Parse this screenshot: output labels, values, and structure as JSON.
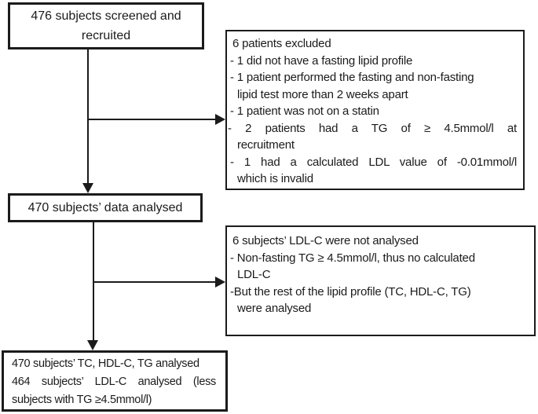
{
  "colors": {
    "ink": "#1b1b1b",
    "background": "#ffffff"
  },
  "flowchart": {
    "screened": {
      "lines": [
        {
          "text": "476 subjects screened and"
        },
        {
          "text": "recruited"
        }
      ]
    },
    "exclusions": {
      "lines": [
        {
          "text": "6 patients excluded"
        },
        {
          "text": "- 1 did not have a fasting lipid profile"
        },
        {
          "text": "- 1 patient performed the fasting and non-fasting"
        },
        {
          "text": "lipid test more than 2 weeks apart",
          "indent": true
        },
        {
          "text": "- 1 patient was not on a statin"
        },
        {
          "text": "- 2 patients had a TG of ≥ 4.5mmol/l at",
          "justify": true,
          "edge": true
        },
        {
          "text": "recruitment",
          "indent": true
        },
        {
          "text": "- 1 had a calculated LDL value of -0.01mmol/l",
          "justify": true
        },
        {
          "text": "which is invalid",
          "indent": true
        }
      ]
    },
    "analysed": {
      "lines": [
        {
          "text": "470 subjects’ data analysed"
        }
      ]
    },
    "ldl_not_analysed": {
      "lines": [
        {
          "text": "6 subjects’ LDL-C were not analysed"
        },
        {
          "text": "- Non-fasting TG ≥ 4.5mmol/l, thus no calculated"
        },
        {
          "text": "LDL-C",
          "indent": true
        },
        {
          "text": "-But the rest of the lipid profile (TC, HDL-C, TG)"
        },
        {
          "text": "were analysed",
          "indent": true
        }
      ]
    },
    "final": {
      "lines": [
        {
          "text": "470 subjects’ TC, HDL-C, TG analysed"
        },
        {
          "text": "464 subjects’ LDL-C analysed (less",
          "justify": true
        },
        {
          "text": "subjects with TG ≥4.5mmol/l)"
        }
      ]
    }
  }
}
